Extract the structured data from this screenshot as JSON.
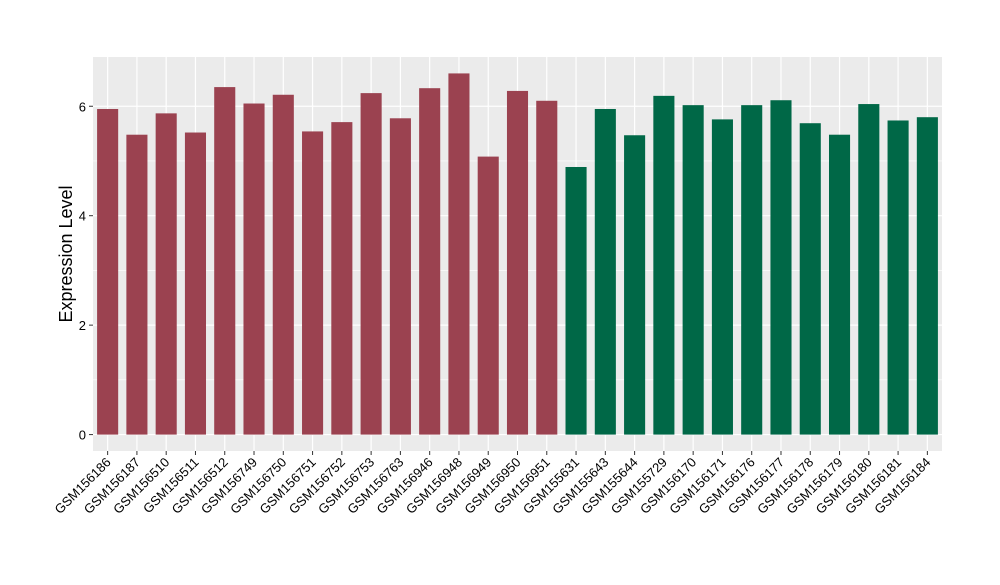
{
  "chart_data": {
    "type": "bar",
    "ylabel": "Expression Level",
    "xlabel": "",
    "title": "",
    "ylim": [
      -0.3,
      6.9
    ],
    "yticks": [
      0,
      2,
      4,
      6
    ],
    "grid": true,
    "legend": "none",
    "background": "#ebebeb",
    "grid_color": "#ffffff",
    "categories": [
      "GSM156186",
      "GSM156187",
      "GSM156510",
      "GSM156511",
      "GSM156512",
      "GSM156749",
      "GSM156750",
      "GSM156751",
      "GSM156752",
      "GSM156753",
      "GSM156763",
      "GSM156946",
      "GSM156948",
      "GSM156949",
      "GSM156950",
      "GSM156951",
      "GSM155631",
      "GSM155643",
      "GSM155644",
      "GSM155729",
      "GSM156170",
      "GSM156171",
      "GSM156176",
      "GSM156177",
      "GSM156178",
      "GSM156179",
      "GSM156180",
      "GSM156181",
      "GSM156184"
    ],
    "values": [
      5.95,
      5.48,
      5.87,
      5.52,
      6.35,
      6.05,
      6.21,
      5.54,
      5.71,
      6.24,
      5.78,
      6.33,
      6.6,
      5.08,
      6.28,
      6.1,
      4.89,
      5.95,
      5.47,
      6.19,
      6.02,
      5.76,
      6.02,
      6.11,
      5.69,
      5.48,
      6.04,
      5.74,
      5.8
    ],
    "colors": [
      "#9b4250",
      "#9b4250",
      "#9b4250",
      "#9b4250",
      "#9b4250",
      "#9b4250",
      "#9b4250",
      "#9b4250",
      "#9b4250",
      "#9b4250",
      "#9b4250",
      "#9b4250",
      "#9b4250",
      "#9b4250",
      "#9b4250",
      "#9b4250",
      "#006847",
      "#006847",
      "#006847",
      "#006847",
      "#006847",
      "#006847",
      "#006847",
      "#006847",
      "#006847",
      "#006847",
      "#006847",
      "#006847",
      "#006847"
    ]
  }
}
